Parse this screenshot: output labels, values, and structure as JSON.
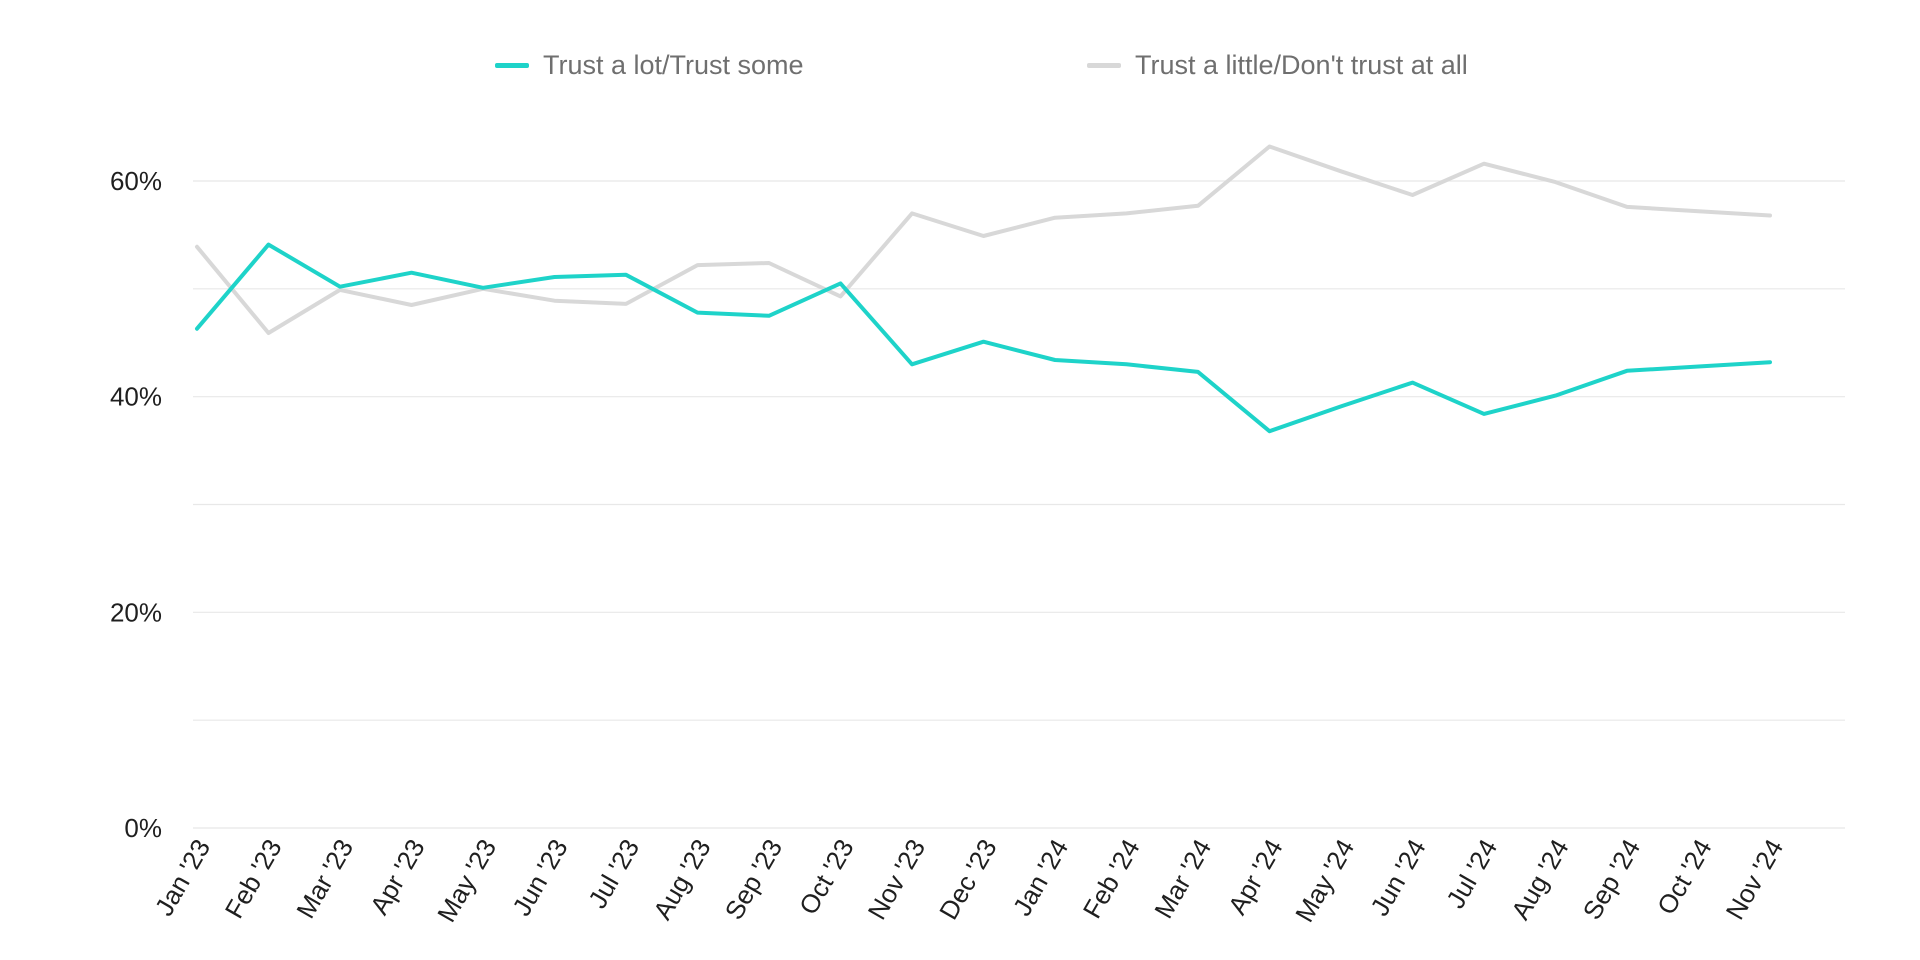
{
  "chart_data": {
    "type": "line",
    "title": "",
    "xlabel": "",
    "ylabel": "",
    "categories": [
      "Jan '23",
      "Feb '23",
      "Mar '23",
      "Apr '23",
      "May '23",
      "Jun '23",
      "Jul '23",
      "Aug '23",
      "Sep '23",
      "Oct '23",
      "Nov '23",
      "Dec '23",
      "Jan '24",
      "Feb '24",
      "Mar '24",
      "Apr '24",
      "May '24",
      "Jun '24",
      "Jul '24",
      "Aug '24",
      "Sep '24",
      "Oct '24",
      "Nov '24"
    ],
    "series": [
      {
        "name": "Trust a lot/Trust some",
        "color": "#1ed3c9",
        "values": [
          46.3,
          54.1,
          50.2,
          51.5,
          50.1,
          51.1,
          51.3,
          47.8,
          47.5,
          50.5,
          43.0,
          45.1,
          43.4,
          43.0,
          42.3,
          36.8,
          39.1,
          41.3,
          38.4,
          40.1,
          42.4,
          42.8,
          43.2
        ]
      },
      {
        "name": "Trust a little/Don't trust at all",
        "color": "#d8d8d8",
        "values": [
          53.9,
          45.9,
          49.9,
          48.5,
          50.0,
          48.9,
          48.6,
          52.2,
          52.4,
          49.3,
          57.0,
          54.9,
          56.6,
          57.0,
          57.7,
          63.2,
          60.9,
          58.7,
          61.6,
          59.9,
          57.6,
          57.2,
          56.8
        ]
      }
    ],
    "ylim": [
      0,
      60
    ],
    "y_ticks": [
      0,
      10,
      20,
      30,
      40,
      50,
      60
    ],
    "y_tick_labels": [
      "0%",
      "",
      "20%",
      "",
      "40%",
      "",
      "60%"
    ],
    "grid": true,
    "legend_position": "top-center"
  }
}
